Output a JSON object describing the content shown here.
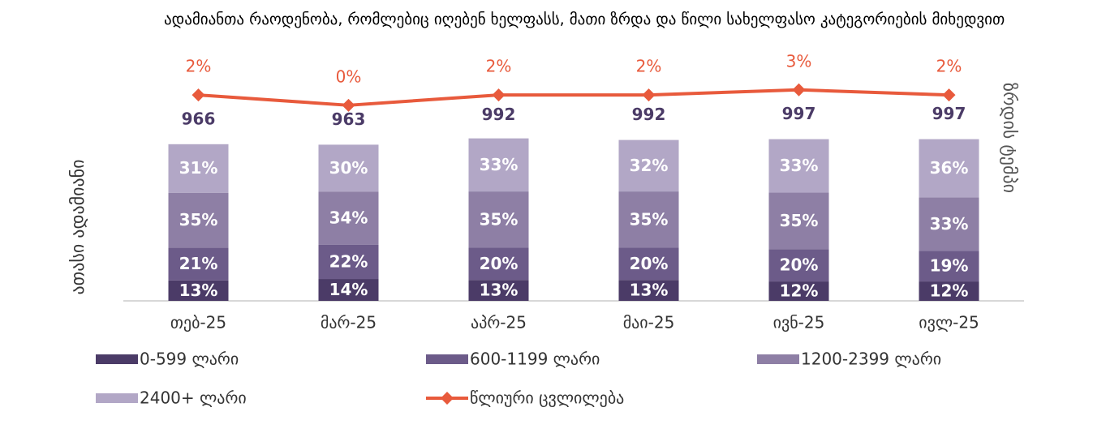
{
  "chart_data": {
    "type": "bar",
    "title": "ადამიანთა რაოდენობა, რომლებიც იღებენ ხელფასს, მათი ზრდა და წილი სახელფასო კატეგორიების მიხედვით",
    "ylabel": "ათასი ადამიანი",
    "y2label": "ზრდის ტემპი",
    "categories": [
      "თებ-25",
      "მარ-25",
      "აპრ-25",
      "მაი-25",
      "ივნ-25",
      "ივლ-25"
    ],
    "totals": [
      966,
      963,
      992,
      992,
      997,
      997
    ],
    "ylim": [
      0,
      1000
    ],
    "y2lim": [
      -38,
      11
    ],
    "series": [
      {
        "name": "0-599 ლარი",
        "color": "#4b3b67",
        "values": [
          13,
          14,
          13,
          13,
          12,
          12
        ],
        "value_labels": [
          "13%",
          "14%",
          "13%",
          "13%",
          "12%",
          "12%"
        ]
      },
      {
        "name": "600-1199 ლარი",
        "color": "#6c5b89",
        "values": [
          21,
          22,
          20,
          20,
          20,
          19
        ],
        "value_labels": [
          "21%",
          "22%",
          "20%",
          "20%",
          "20%",
          "19%"
        ]
      },
      {
        "name": "1200-2399 ლარი",
        "color": "#8e7fa5",
        "values": [
          35,
          34,
          35,
          35,
          35,
          33
        ],
        "value_labels": [
          "35%",
          "34%",
          "35%",
          "35%",
          "35%",
          "33%"
        ]
      },
      {
        "name": "2400+ ლარი",
        "color": "#b2a7c6",
        "values": [
          31,
          30,
          33,
          32,
          33,
          36
        ],
        "value_labels": [
          "31%",
          "30%",
          "33%",
          "32%",
          "33%",
          "36%"
        ]
      },
      {
        "name": "წლიური ცვლილება",
        "type": "line",
        "axis": "y2",
        "color": "#e85a3c",
        "values": [
          2,
          0,
          2,
          2,
          3,
          2
        ],
        "value_labels": [
          "2%",
          "0%",
          "2%",
          "2%",
          "3%",
          "2%"
        ]
      }
    ]
  }
}
